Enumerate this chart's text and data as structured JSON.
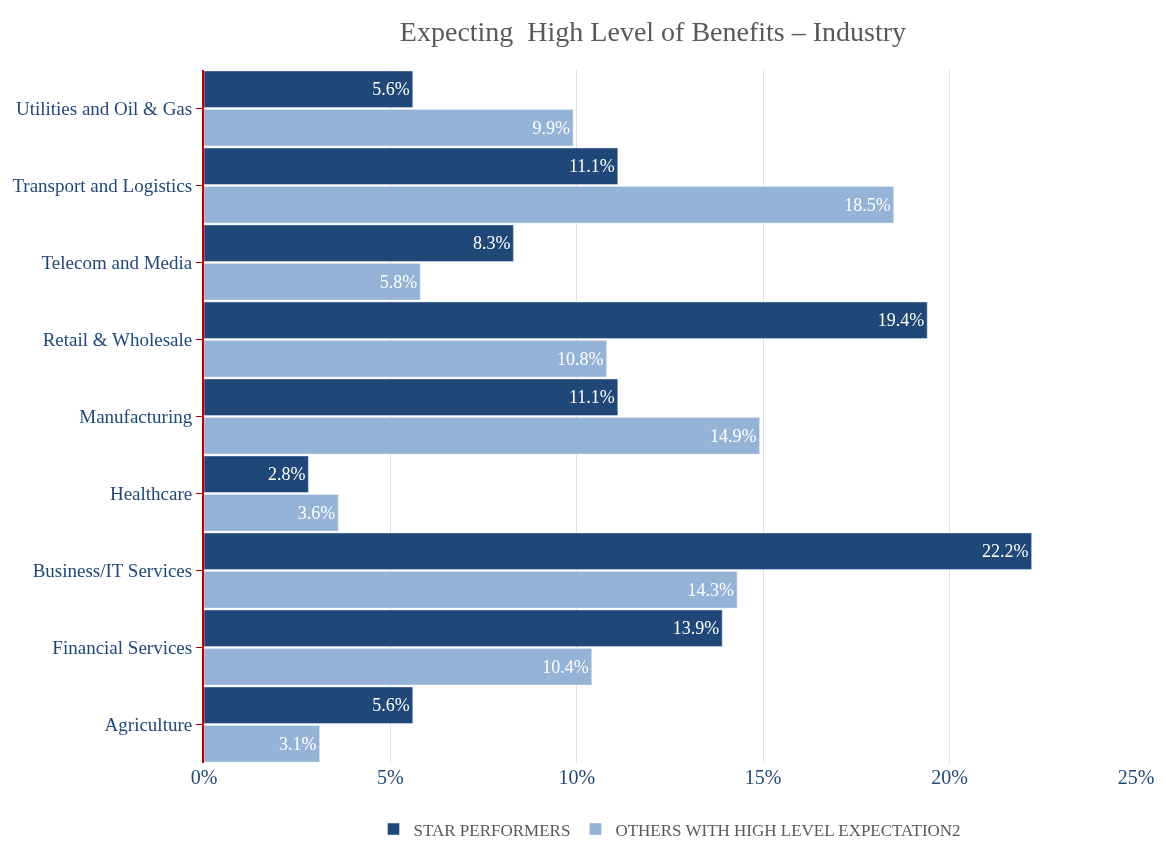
{
  "chart_data": {
    "type": "bar",
    "orientation": "horizontal",
    "title": "Expecting  High Level of Benefits – Industry",
    "categories": [
      "Utilities and Oil & Gas",
      "Transport and Logistics",
      "Telecom and Media",
      "Retail & Wholesale",
      "Manufacturing",
      "Healthcare",
      "Business/IT Services",
      "Financial Services",
      "Agriculture"
    ],
    "series": [
      {
        "name": "STAR PERFORMERS",
        "color": "#1f4778",
        "values": [
          5.6,
          11.1,
          8.3,
          19.4,
          11.1,
          2.8,
          22.2,
          13.9,
          5.6
        ],
        "value_labels": [
          "5.6%",
          "11.1%",
          "8.3%",
          "19.4%",
          "11.1%",
          "2.8%",
          "22.2%",
          "13.9%",
          "5.6%"
        ]
      },
      {
        "name": "OTHERS WITH HIGH LEVEL EXPECTATION2",
        "color": "#95b3d7",
        "values": [
          9.9,
          18.5,
          5.8,
          10.8,
          14.9,
          3.6,
          14.3,
          10.4,
          3.1
        ],
        "value_labels": [
          "9.9%",
          "18.5%",
          "5.8%",
          "10.8%",
          "14.9%",
          "3.6%",
          "14.3%",
          "10.4%",
          "3.1%"
        ]
      }
    ],
    "xlim": [
      0,
      25
    ],
    "xticks": [
      {
        "value": 0,
        "label": "0%"
      },
      {
        "value": 5,
        "label": "5%"
      },
      {
        "value": 10,
        "label": "10%"
      },
      {
        "value": 15,
        "label": "15%"
      },
      {
        "value": 20,
        "label": "20%"
      },
      {
        "value": 25,
        "label": "25%"
      }
    ],
    "grid": "x",
    "legend": "bottom"
  }
}
